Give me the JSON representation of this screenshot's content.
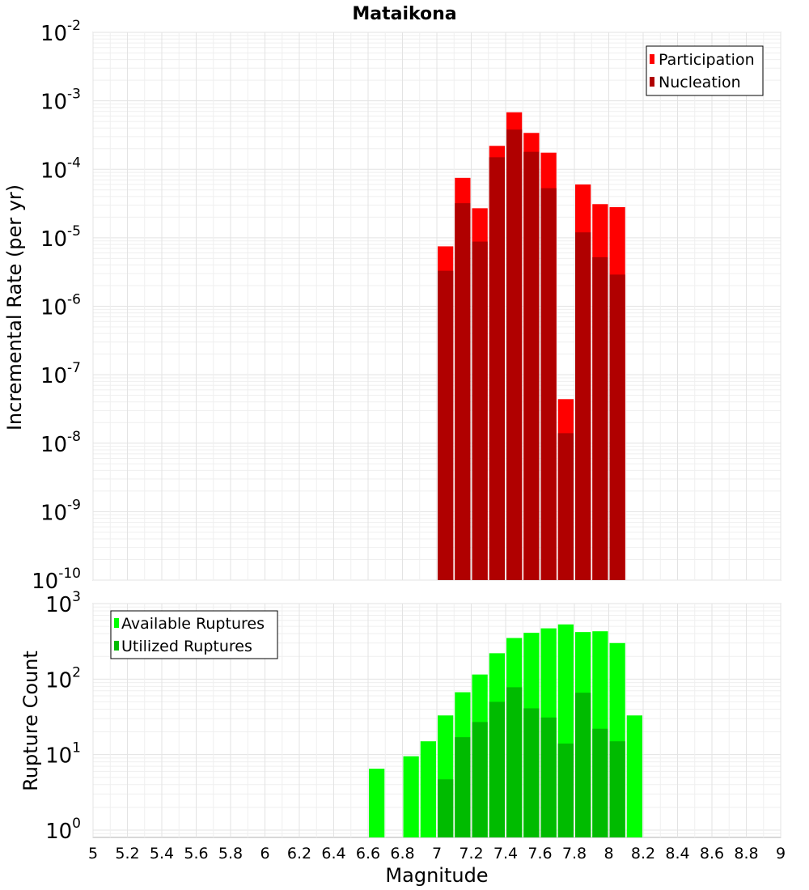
{
  "title": "Mataikona",
  "chart_data": [
    {
      "type": "bar",
      "panel": "top",
      "ylabel": "Incremental Rate (per yr)",
      "xlabel": "",
      "yscale": "log",
      "ylim": [
        1e-10,
        0.01
      ],
      "xlim": [
        5,
        9
      ],
      "y_ticks": [
        {
          "base": "10",
          "exp": "-10"
        },
        {
          "base": "10",
          "exp": "-9"
        },
        {
          "base": "10",
          "exp": "-8"
        },
        {
          "base": "10",
          "exp": "-7"
        },
        {
          "base": "10",
          "exp": "-6"
        },
        {
          "base": "10",
          "exp": "-5"
        },
        {
          "base": "10",
          "exp": "-4"
        },
        {
          "base": "10",
          "exp": "-3"
        },
        {
          "base": "10",
          "exp": "-2"
        }
      ],
      "grid": true,
      "legend_position": "top-right",
      "bar_width": 0.1,
      "series": [
        {
          "name": "Participation",
          "color": "#ff0000",
          "x": [
            7.05,
            7.15,
            7.25,
            7.35,
            7.45,
            7.55,
            7.65,
            7.75,
            7.85,
            7.95,
            8.05
          ],
          "values": [
            7.5e-06,
            7.5e-05,
            2.7e-05,
            0.00022,
            0.00068,
            0.00034,
            0.000175,
            4.4e-08,
            6e-05,
            3.1e-05,
            2.8e-05
          ]
        },
        {
          "name": "Nucleation",
          "color": "#b00000",
          "x": [
            7.05,
            7.15,
            7.25,
            7.35,
            7.45,
            7.55,
            7.65,
            7.75,
            7.85,
            7.95,
            8.05
          ],
          "values": [
            3.3e-06,
            3.2e-05,
            8.8e-06,
            0.00015,
            0.00038,
            0.00018,
            5.3e-05,
            1.4e-08,
            1.2e-05,
            5.2e-06,
            2.9e-06
          ]
        }
      ]
    },
    {
      "type": "bar",
      "panel": "bottom",
      "ylabel": "Rupture Count",
      "xlabel": "Magnitude",
      "yscale": "log",
      "ylim": [
        0.8,
        1000
      ],
      "xlim": [
        5,
        9
      ],
      "y_ticks": [
        {
          "base": "10",
          "exp": "0"
        },
        {
          "base": "10",
          "exp": "1"
        },
        {
          "base": "10",
          "exp": "2"
        },
        {
          "base": "10",
          "exp": "3"
        }
      ],
      "x_ticks": [
        "5",
        "5.2",
        "5.4",
        "5.6",
        "5.8",
        "6",
        "6.2",
        "6.4",
        "6.6",
        "6.8",
        "7",
        "7.2",
        "7.4",
        "7.6",
        "7.8",
        "8",
        "8.2",
        "8.4",
        "8.6",
        "8.8",
        "9"
      ],
      "grid": true,
      "legend_position": "top-left",
      "bar_width": 0.1,
      "series": [
        {
          "name": "Available Ruptures",
          "color": "#00ff00",
          "x": [
            6.65,
            6.85,
            6.95,
            7.05,
            7.15,
            7.25,
            7.35,
            7.45,
            7.55,
            7.65,
            7.75,
            7.85,
            7.95,
            8.05,
            8.15
          ],
          "values": [
            6.5,
            9.5,
            15,
            33,
            67,
            115,
            220,
            350,
            410,
            470,
            530,
            420,
            430,
            300,
            33
          ]
        },
        {
          "name": "Utilized Ruptures",
          "color": "#00bb00",
          "x": [
            7.05,
            7.15,
            7.25,
            7.35,
            7.45,
            7.55,
            7.65,
            7.75,
            7.85,
            7.95,
            8.05
          ],
          "values": [
            4.7,
            17,
            27,
            50,
            78,
            41,
            31,
            14,
            66,
            22,
            15
          ]
        }
      ]
    }
  ]
}
